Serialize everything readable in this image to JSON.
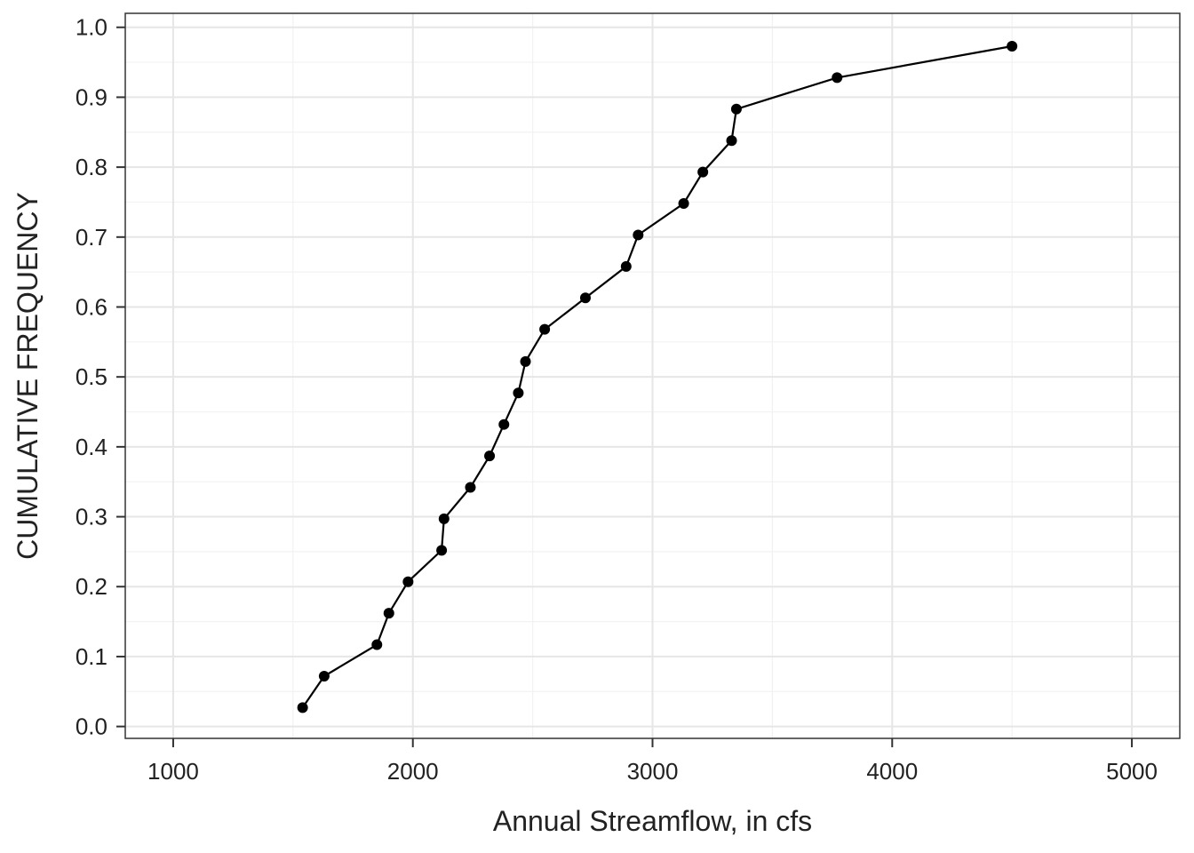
{
  "chart_data": {
    "type": "line",
    "title": "",
    "xlabel": "Annual Streamflow, in cfs",
    "ylabel": "CUMULATIVE FREQUENCY",
    "xlim": [
      800,
      5200
    ],
    "ylim": [
      -0.017,
      1.02
    ],
    "x_ticks": [
      1000,
      2000,
      3000,
      4000,
      5000
    ],
    "y_ticks": [
      0.0,
      0.1,
      0.2,
      0.3,
      0.4,
      0.5,
      0.6,
      0.7,
      0.8,
      0.9,
      1.0
    ],
    "y_tick_labels": [
      "0.0",
      "0.1",
      "0.2",
      "0.3",
      "0.4",
      "0.5",
      "0.6",
      "0.7",
      "0.8",
      "0.9",
      "1.0"
    ],
    "grid": true,
    "legend": "none",
    "colors": {
      "line": "#000000",
      "grid_major": "#e6e6e6",
      "grid_minor": "#f2f2f2",
      "frame": "#333333"
    },
    "series": [
      {
        "x": [
          1540,
          1630,
          1850,
          1900,
          1980,
          2120,
          2130,
          2240,
          2320,
          2380,
          2440,
          2470,
          2550,
          2720,
          2890,
          2940,
          3130,
          3210,
          3330,
          3350,
          3770,
          4500
        ],
        "y": [
          0.027,
          0.072,
          0.117,
          0.162,
          0.207,
          0.252,
          0.297,
          0.342,
          0.387,
          0.432,
          0.477,
          0.522,
          0.568,
          0.613,
          0.658,
          0.703,
          0.748,
          0.793,
          0.838,
          0.883,
          0.928,
          0.973
        ]
      }
    ]
  }
}
